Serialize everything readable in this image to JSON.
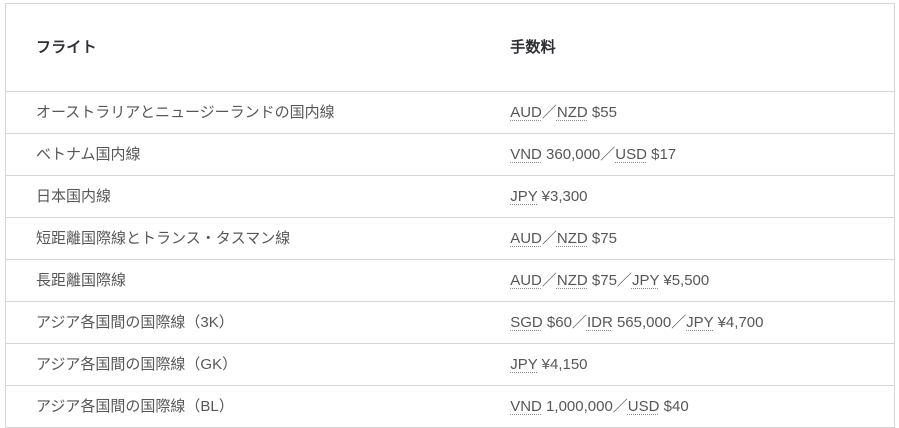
{
  "colors": {
    "background": "#ffffff",
    "border": "#d7d7d7",
    "header_text": "#2e2f33",
    "body_text": "#575757",
    "abbr_underline": "#8e8e8e"
  },
  "table": {
    "columns": [
      {
        "label": "フライト"
      },
      {
        "label": "手数料"
      }
    ],
    "rows": [
      {
        "flight": "オーストラリアとニュージーランドの国内線",
        "fee": [
          {
            "text": "AUD",
            "abbr": true
          },
          {
            "text": "／",
            "abbr": false
          },
          {
            "text": "NZD",
            "abbr": true
          },
          {
            "text": " $55",
            "abbr": false
          }
        ]
      },
      {
        "flight": "ベトナム国内線",
        "fee": [
          {
            "text": "VND",
            "abbr": true
          },
          {
            "text": " 360,000／",
            "abbr": false
          },
          {
            "text": "USD",
            "abbr": true
          },
          {
            "text": " $17",
            "abbr": false
          }
        ]
      },
      {
        "flight": "日本国内線",
        "fee": [
          {
            "text": "JPY",
            "abbr": true
          },
          {
            "text": " ¥3,300",
            "abbr": false
          }
        ]
      },
      {
        "flight": "短距離国際線とトランス・タスマン線",
        "fee": [
          {
            "text": "AUD",
            "abbr": true
          },
          {
            "text": "／",
            "abbr": false
          },
          {
            "text": "NZD",
            "abbr": true
          },
          {
            "text": " $75",
            "abbr": false
          }
        ]
      },
      {
        "flight": "長距離国際線",
        "fee": [
          {
            "text": "AUD",
            "abbr": true
          },
          {
            "text": "／",
            "abbr": false
          },
          {
            "text": "NZD",
            "abbr": true
          },
          {
            "text": " $75／",
            "abbr": false
          },
          {
            "text": "JPY",
            "abbr": true
          },
          {
            "text": " ¥5,500",
            "abbr": false
          }
        ]
      },
      {
        "flight": "アジア各国間の国際線（3K）",
        "fee": [
          {
            "text": "SGD",
            "abbr": true
          },
          {
            "text": " $60／",
            "abbr": false
          },
          {
            "text": "IDR",
            "abbr": true
          },
          {
            "text": " 565,000／",
            "abbr": false
          },
          {
            "text": "JPY",
            "abbr": true
          },
          {
            "text": " ¥4,700",
            "abbr": false
          }
        ]
      },
      {
        "flight": "アジア各国間の国際線（GK）",
        "fee": [
          {
            "text": "JPY",
            "abbr": true
          },
          {
            "text": " ¥4,150",
            "abbr": false
          }
        ]
      },
      {
        "flight": "アジア各国間の国際線（BL）",
        "fee": [
          {
            "text": "VND",
            "abbr": true
          },
          {
            "text": " 1,000,000／",
            "abbr": false
          },
          {
            "text": "USD",
            "abbr": true
          },
          {
            "text": " $40",
            "abbr": false
          }
        ]
      }
    ]
  }
}
